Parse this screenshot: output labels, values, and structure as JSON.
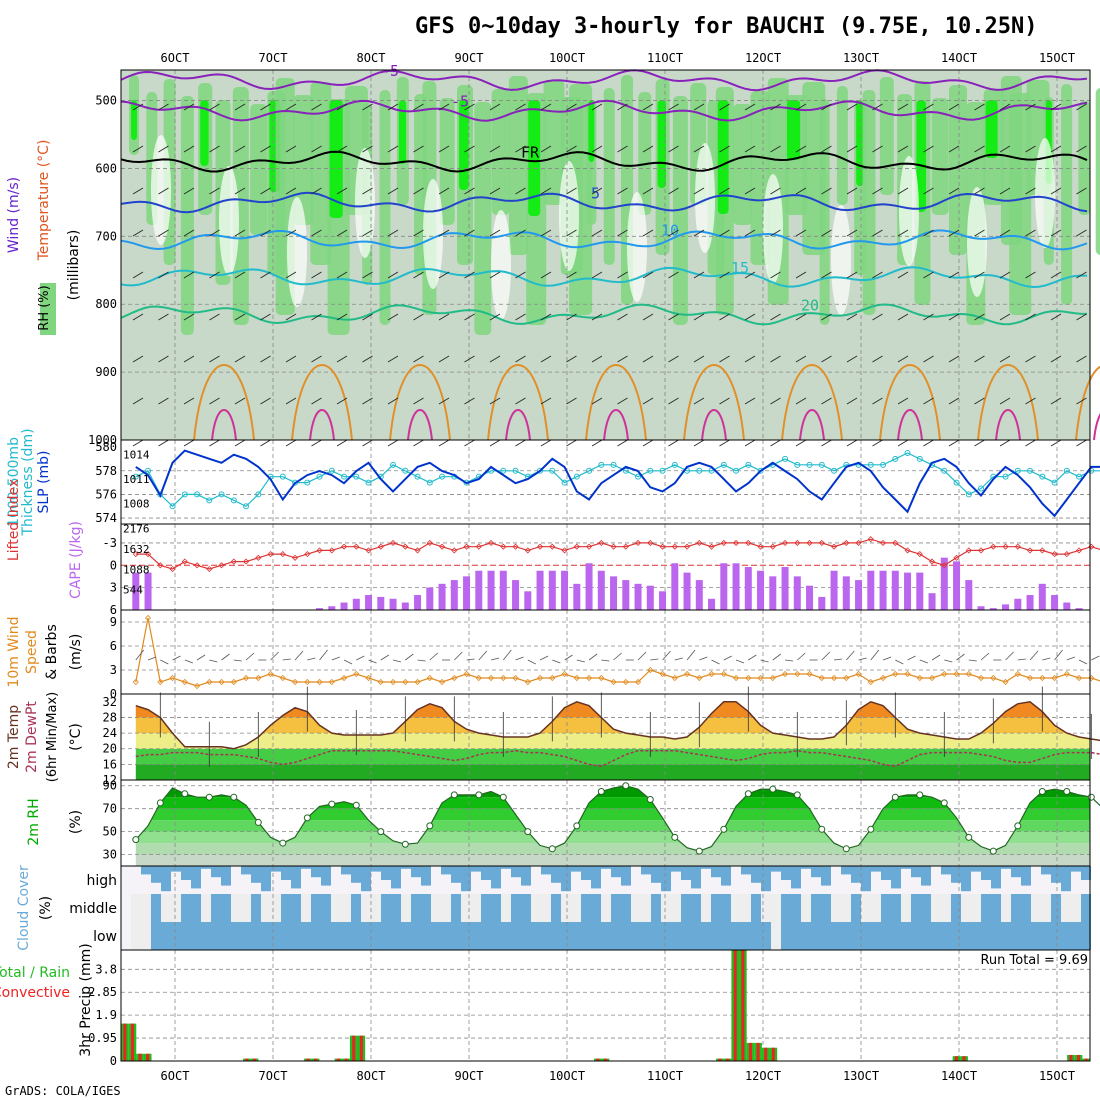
{
  "header": {
    "title": "GFS 0~10day 3-hourly for BAUCHI (9.75E, 10.25N)",
    "footer": "GrADS: COLA/IGES",
    "dates": [
      "6OCT",
      "7OCT",
      "8OCT",
      "9OCT",
      "10OCT",
      "11OCT",
      "12OCT",
      "13OCT",
      "14OCT",
      "15OCT"
    ]
  },
  "colors": {
    "rh_light": "#c9d9c9",
    "rh_mid": "#7fd67f",
    "rh_high": "#00ee00",
    "slp": "#0033cc",
    "thickness": "#22bbcc",
    "cape": "#bb66ee",
    "lifted": "#dd3333",
    "wind10": "#e08a1e",
    "rh2": "#00aa00",
    "cloud": "#6aaad6",
    "cloud_clear": "#eeeeee",
    "precip_total": "#22bb22",
    "precip_conv": "#ee2222"
  },
  "panels": {
    "upper": {
      "ylabel_wind": "Wind (m/s)",
      "ylabel_temp": "Temperature (°C)",
      "ylabel_rh": "RH (%)",
      "ylabel_p": "(millibars)",
      "pressure_ticks": [
        "500",
        "600",
        "700",
        "800",
        "900",
        "1000"
      ],
      "isotherm_labels": [
        "-5",
        "FR",
        "5",
        "10",
        "15",
        "20",
        "25",
        "50"
      ]
    },
    "slp": {
      "ylabel_a": "1000-500mb",
      "ylabel_b": "Thickness (dm)",
      "ylabel_c": "SLP (mb)",
      "left_ticks": [
        "580",
        "578",
        "576",
        "574"
      ],
      "right_ticks": [
        "1014",
        "1011",
        "1008"
      ]
    },
    "cape": {
      "ylabel_a": "Lifted Index",
      "ylabel_b": "CAPE (J/kg)",
      "left_ticks": [
        "-3",
        "0",
        "3",
        "6"
      ],
      "right_ticks": [
        "2176",
        "1632",
        "1088",
        "544"
      ]
    },
    "wind": {
      "ylabel_a": "10m Wind",
      "ylabel_b": "Speed",
      "ylabel_c": "& Barbs",
      "ylabel_d": "(m/s)",
      "ticks": [
        "9",
        "6",
        "3",
        "0"
      ]
    },
    "temp": {
      "ylabel_a": "2m Temp",
      "ylabel_b": "2m DewPt",
      "ylabel_c": "(6hr Min/Max)",
      "ylabel_d": "(°C)",
      "ticks": [
        "32",
        "28",
        "24",
        "20",
        "16",
        "12"
      ]
    },
    "rh": {
      "ylabel_a": "2m RH",
      "ylabel_b": "(%)",
      "ticks": [
        "90",
        "70",
        "50",
        "30"
      ]
    },
    "cloud": {
      "ylabel_a": "Cloud Cover",
      "ylabel_b": "(%)",
      "levels": [
        "high",
        "middle",
        "low"
      ]
    },
    "precip": {
      "ylabel_a": "Total / Rain",
      "ylabel_b": "Convective",
      "ylabel_c": "3hr Precip (mm)",
      "ticks": [
        "3.8",
        "2.85",
        "1.9",
        "0.95",
        "0"
      ],
      "run_total": "Run Total = 9.69"
    }
  },
  "chart_data": {
    "type": "line",
    "x_start_day": 5.6,
    "x_end_day": 15.25,
    "step_hours": 3,
    "slp_mb": [
      1012.5,
      1011.5,
      1009,
      1013,
      1014.5,
      1014,
      1013.5,
      1013,
      1014,
      1013.5,
      1012.5,
      1011,
      1008.5,
      1010.5,
      1011.5,
      1012,
      1011.5,
      1010.5,
      1012,
      1013,
      1011,
      1009.5,
      1011,
      1012.5,
      1013,
      1012,
      1011.5,
      1010.5,
      1011,
      1012.5,
      1011.5,
      1010.5,
      1011,
      1012,
      1013.5,
      1012.5,
      1009.5,
      1008.5,
      1010.5,
      1011.5,
      1012.5,
      1012,
      1010,
      1009.5,
      1010.5,
      1012.5,
      1013,
      1012.5,
      1011,
      1009.5,
      1010.5,
      1012,
      1013,
      1012,
      1011,
      1009.5,
      1008.5,
      1010.5,
      1012.5,
      1013,
      1012,
      1010,
      1008.5,
      1007,
      1010.5,
      1013,
      1013.5,
      1012.5,
      1010.5,
      1009,
      1011,
      1012.5,
      1011.5,
      1010,
      1008,
      1006.5,
      1008.5,
      1010.5,
      1012.5,
      1012.5,
      1011,
      1010,
      1011.5,
      1012.5,
      1012,
      1011.5,
      1010,
      1007.5,
      1010.5,
      1012.5,
      1012,
      1011,
      1011.5,
      1012.5,
      1013,
      1011.5,
      1009,
      1010.5,
      1012
    ],
    "thickness_dm": [
      577.5,
      578,
      576,
      575,
      576,
      576,
      575.5,
      576,
      575.5,
      575,
      576,
      577.5,
      577.5,
      577,
      577,
      577.5,
      578,
      577.5,
      577.5,
      577,
      577.5,
      578.5,
      578,
      577.5,
      577,
      577.5,
      577.5,
      577,
      577.5,
      578,
      578,
      578,
      577.5,
      578,
      578,
      577,
      577.5,
      578,
      578.5,
      578.5,
      578,
      577.5,
      578,
      578,
      578.5,
      578,
      578,
      578,
      578.5,
      578,
      578.5,
      578,
      578.5,
      579,
      578.5,
      578.5,
      578.5,
      578,
      578.5,
      578.5,
      578.5,
      578.5,
      579,
      579.5,
      579,
      578.5,
      578,
      577,
      576,
      576.5,
      577.5,
      577.5,
      578,
      578,
      577.5,
      577,
      578,
      577.5,
      578,
      578,
      577.5,
      578,
      578.5,
      578,
      577.5,
      578.5,
      579,
      579,
      578.5,
      578,
      578,
      577.5,
      578,
      578,
      577,
      577.5,
      577,
      577
    ],
    "lifted_index": [
      -1.5,
      -1.5,
      0,
      0.5,
      -0.5,
      0,
      0.5,
      0,
      -0.5,
      -0.5,
      -1,
      -1.5,
      -1.5,
      -1,
      -1.5,
      -2,
      -2,
      -2.5,
      -2.5,
      -2,
      -2.5,
      -3,
      -2.5,
      -2,
      -3,
      -2.5,
      -2,
      -2.5,
      -2.5,
      -3,
      -2.5,
      -2.5,
      -2,
      -2.5,
      -2.5,
      -2,
      -2.5,
      -2.5,
      -3,
      -2.5,
      -2.5,
      -3,
      -3,
      -2.5,
      -2.5,
      -2.5,
      -3,
      -2.5,
      -3,
      -3,
      -3,
      -2.5,
      -2.5,
      -3,
      -3,
      -3,
      -3,
      -2.5,
      -3,
      -3,
      -3.5,
      -3,
      -3,
      -2,
      -1.5,
      -0.5,
      0,
      -1,
      -2,
      -2,
      -2.5,
      -2.5,
      -2.5,
      -2,
      -2,
      -1.5,
      -1.5,
      -2,
      -2.5,
      -2,
      -1.5,
      -2,
      -2.5,
      -3,
      -2.5,
      -2.5,
      -2,
      -2,
      -2.5,
      -2.5,
      -3,
      -2.5,
      -2.5,
      -2,
      -2,
      -2,
      -1.5,
      -1.5,
      -2.5
    ],
    "cape": [
      1000,
      1000,
      0,
      0,
      0,
      0,
      0,
      0,
      0,
      0,
      0,
      0,
      0,
      0,
      0,
      50,
      100,
      200,
      300,
      400,
      350,
      300,
      200,
      400,
      600,
      700,
      800,
      900,
      1050,
      1050,
      1050,
      800,
      500,
      1050,
      1050,
      1050,
      700,
      1250,
      1050,
      900,
      800,
      700,
      650,
      500,
      1250,
      1000,
      800,
      300,
      1250,
      1250,
      1150,
      1050,
      900,
      1150,
      900,
      650,
      350,
      1050,
      900,
      800,
      1050,
      1050,
      1050,
      1000,
      1000,
      450,
      1400,
      1300,
      800,
      100,
      50,
      150,
      300,
      400,
      700,
      400,
      200,
      50,
      0,
      100,
      300,
      550,
      700,
      900,
      1100,
      1300,
      1100,
      900,
      500,
      400,
      450,
      500,
      700,
      1050,
      500,
      200,
      150,
      100
    ],
    "wind_speed": [
      1.5,
      9.5,
      1.5,
      2,
      1.5,
      1,
      1.5,
      1.5,
      1.5,
      2,
      2,
      2.5,
      2,
      1.5,
      1.5,
      1.5,
      1.5,
      2,
      2.5,
      2,
      1.5,
      1.5,
      1.5,
      1.5,
      2,
      1.5,
      2,
      2.5,
      2,
      2,
      2,
      2,
      1.5,
      2,
      2,
      2.5,
      2,
      2,
      2,
      1.5,
      1.5,
      1.5,
      3,
      2.5,
      2,
      2.5,
      2,
      2.5,
      2.5,
      2,
      2,
      2,
      2,
      2.5,
      2.5,
      2.5,
      2,
      2,
      2,
      2.5,
      1.5,
      2,
      2.5,
      2.5,
      2,
      2,
      2.5,
      2.5,
      2.5,
      2,
      2,
      1.5,
      2.5,
      2,
      2,
      2,
      2.5,
      2,
      2,
      1.5,
      2,
      2,
      2.5,
      3,
      2,
      2.5,
      2,
      2,
      1.5,
      2,
      3,
      4.5,
      3,
      2,
      2,
      1.5,
      1,
      1,
      1
    ],
    "temp_2m": [
      31,
      30,
      28,
      24,
      20.5,
      20.5,
      20.5,
      20.5,
      20,
      21,
      23,
      26,
      28.5,
      30.5,
      29.5,
      26,
      24,
      23.5,
      23.5,
      23.5,
      23.5,
      24,
      27,
      30,
      31.5,
      30.5,
      27,
      25,
      24,
      23.5,
      23,
      23,
      23,
      24,
      27,
      30.5,
      32,
      31,
      28,
      25,
      24,
      23.5,
      23,
      23,
      22.5,
      23,
      25.5,
      29,
      32,
      32,
      29.5,
      26,
      24,
      23.5,
      23,
      22.5,
      22.5,
      23,
      26,
      30,
      32,
      31,
      28,
      25,
      24,
      23.5,
      23,
      22.5,
      22.5,
      24,
      26.5,
      29.5,
      31.5,
      32,
      29.5,
      26,
      24,
      23,
      22.5,
      22,
      21.5,
      23,
      26,
      30,
      32,
      31,
      28,
      25,
      23.5,
      23,
      22.5,
      22,
      21.5,
      24.5,
      29,
      32.5,
      31,
      27,
      24,
      23,
      22.5
    ],
    "dewpt_2m": [
      18,
      18.5,
      18.5,
      19,
      19,
      19,
      18.5,
      18.5,
      18.5,
      18,
      17.5,
      16.5,
      16,
      16.5,
      17.5,
      18.5,
      19.5,
      19.5,
      19.5,
      19.5,
      19.5,
      19.5,
      19,
      18.5,
      18,
      17.5,
      17,
      17.5,
      18.5,
      19,
      19,
      19.5,
      19,
      19,
      18.5,
      18,
      17,
      16,
      15.5,
      17,
      18.5,
      19.5,
      19.5,
      19.5,
      19.5,
      19,
      18.5,
      18,
      17.5,
      17,
      17.5,
      18.5,
      19,
      19,
      19.5,
      19,
      19,
      18.5,
      18,
      17.5,
      17,
      16,
      15.5,
      17,
      18.5,
      19,
      19,
      19,
      19,
      18.5,
      18,
      17,
      16.5,
      16.5,
      17.5,
      18.5,
      19,
      19,
      19,
      18.5,
      18,
      17.5,
      17,
      16.5,
      15.5,
      15,
      17,
      18.5,
      19,
      19,
      19.5,
      19,
      18.5,
      18,
      17,
      16.5,
      17.5,
      18.5,
      19
    ],
    "rh_2m": [
      43,
      55,
      75,
      88,
      83,
      80,
      80,
      82,
      80,
      73,
      58,
      45,
      40,
      45,
      62,
      72,
      74,
      76,
      73,
      60,
      50,
      42,
      39,
      40,
      55,
      75,
      82,
      82,
      82,
      85,
      80,
      65,
      50,
      38,
      35,
      40,
      55,
      75,
      85,
      88,
      90,
      87,
      78,
      62,
      45,
      36,
      33,
      37,
      52,
      72,
      83,
      87,
      87,
      85,
      82,
      70,
      52,
      40,
      35,
      38,
      52,
      70,
      80,
      82,
      82,
      80,
      75,
      62,
      45,
      37,
      33,
      38,
      55,
      75,
      85,
      87,
      85,
      82,
      80,
      70,
      55,
      42,
      35,
      36,
      52,
      68,
      78,
      80,
      80,
      75,
      65,
      50,
      38,
      33,
      37,
      55,
      70,
      78,
      80
    ],
    "precip_total": [
      1.55,
      1.55,
      0.3,
      0.3,
      0,
      0,
      0,
      0,
      0,
      0,
      0,
      0,
      0,
      0,
      0,
      0,
      0.1,
      0.1,
      0,
      0,
      0,
      0,
      0,
      0,
      0.1,
      0.1,
      0,
      0,
      0.1,
      0.1,
      1.05,
      1.05,
      0,
      0,
      0,
      0,
      0,
      0,
      0,
      0,
      0,
      0,
      0,
      0,
      0,
      0,
      0,
      0,
      0,
      0,
      0,
      0,
      0,
      0,
      0,
      0,
      0,
      0,
      0,
      0,
      0,
      0,
      0.1,
      0.1,
      0,
      0,
      0,
      0,
      0,
      0,
      0,
      0,
      0,
      0,
      0,
      0,
      0,
      0,
      0.1,
      0.1,
      4.6,
      4.6,
      0.75,
      0.75,
      0.55,
      0.55,
      0,
      0,
      0,
      0,
      0,
      0,
      0,
      0,
      0,
      0,
      0,
      0,
      0,
      0,
      0,
      0,
      0,
      0,
      0,
      0,
      0,
      0,
      0,
      0.2,
      0.2,
      0,
      0,
      0,
      0,
      0,
      0,
      0,
      0,
      0,
      0,
      0,
      0,
      0,
      0.25,
      0.25,
      0.1
    ],
    "precip_axis_max": 4.6
  }
}
